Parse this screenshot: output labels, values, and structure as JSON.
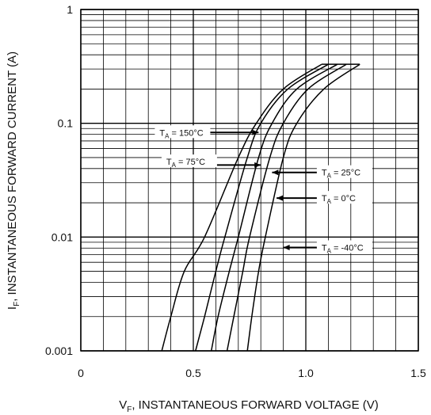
{
  "chart_data": {
    "type": "line",
    "xlabel": "V",
    "xlabel_sub": "F",
    "xlabel_rest": ", INSTANTANEOUS FORWARD VOLTAGE (V)",
    "ylabel": "I",
    "ylabel_sub": "F",
    "ylabel_rest": ", INSTANTANEOUS FORWARD CURRENT (A)",
    "xlim": [
      0,
      1.5
    ],
    "ylim": [
      0.001,
      1
    ],
    "y_scale": "log",
    "grid": true,
    "x_ticks": [
      0,
      0.5,
      1.0,
      1.5
    ],
    "x_tick_labels": [
      "0",
      "0.5",
      "1.0",
      "1.5"
    ],
    "y_ticks": [
      0.001,
      0.01,
      0.1,
      1
    ],
    "y_tick_labels": [
      "0.001",
      "0.01",
      "0.1",
      "1"
    ],
    "series": [
      {
        "name": "T = 150°C",
        "sym": "T",
        "sub": "A",
        "rest": " = 150°C",
        "points": [
          [
            0.36,
            0.001
          ],
          [
            0.4,
            0.002
          ],
          [
            0.46,
            0.005
          ],
          [
            0.55,
            0.01
          ],
          [
            0.7,
            0.05
          ],
          [
            0.78,
            0.1
          ],
          [
            0.9,
            0.2
          ],
          [
            1.07,
            0.33
          ]
        ]
      },
      {
        "name": "T = 75°C",
        "sym": "T",
        "sub": "A",
        "rest": " = 75°C",
        "points": [
          [
            0.51,
            0.001
          ],
          [
            0.55,
            0.002
          ],
          [
            0.6,
            0.005
          ],
          [
            0.64,
            0.01
          ],
          [
            0.74,
            0.05
          ],
          [
            0.8,
            0.1
          ],
          [
            0.92,
            0.2
          ],
          [
            1.1,
            0.33
          ]
        ]
      },
      {
        "name": "T = 25°C",
        "sym": "T",
        "sub": "A",
        "rest": " = 25°C",
        "points": [
          [
            0.58,
            0.001
          ],
          [
            0.61,
            0.002
          ],
          [
            0.66,
            0.005
          ],
          [
            0.7,
            0.01
          ],
          [
            0.79,
            0.05
          ],
          [
            0.85,
            0.1
          ],
          [
            0.96,
            0.2
          ],
          [
            1.14,
            0.33
          ]
        ]
      },
      {
        "name": "T = 0°C",
        "sym": "T",
        "sub": "A",
        "rest": " = 0°C",
        "points": [
          [
            0.65,
            0.001
          ],
          [
            0.68,
            0.002
          ],
          [
            0.72,
            0.005
          ],
          [
            0.75,
            0.01
          ],
          [
            0.84,
            0.05
          ],
          [
            0.9,
            0.1
          ],
          [
            1.01,
            0.2
          ],
          [
            1.18,
            0.33
          ]
        ]
      },
      {
        "name": "T = -40°C",
        "sym": "T",
        "sub": "A",
        "rest": " = -40°C",
        "points": [
          [
            0.74,
            0.001
          ],
          [
            0.76,
            0.002
          ],
          [
            0.79,
            0.005
          ],
          [
            0.82,
            0.01
          ],
          [
            0.9,
            0.05
          ],
          [
            0.96,
            0.1
          ],
          [
            1.08,
            0.2
          ],
          [
            1.24,
            0.33
          ]
        ]
      }
    ],
    "annotations": [
      {
        "series": "T = 150°C",
        "label_x": 0.35,
        "label_y": 0.083,
        "target_x": 0.79,
        "target_y": 0.083
      },
      {
        "series": "T = 75°C",
        "label_x": 0.38,
        "label_y": 0.046,
        "target_x": 0.8,
        "target_y": 0.043
      },
      {
        "series": "T = 25°C",
        "label_x": 1.07,
        "label_y": 0.037,
        "target_x": 0.85,
        "target_y": 0.037
      },
      {
        "series": "T = 0°C",
        "label_x": 1.07,
        "label_y": 0.022,
        "target_x": 0.87,
        "target_y": 0.022
      },
      {
        "series": "T = -40°C",
        "label_x": 1.07,
        "label_y": 0.0081,
        "target_x": 0.9,
        "target_y": 0.0081
      }
    ]
  }
}
